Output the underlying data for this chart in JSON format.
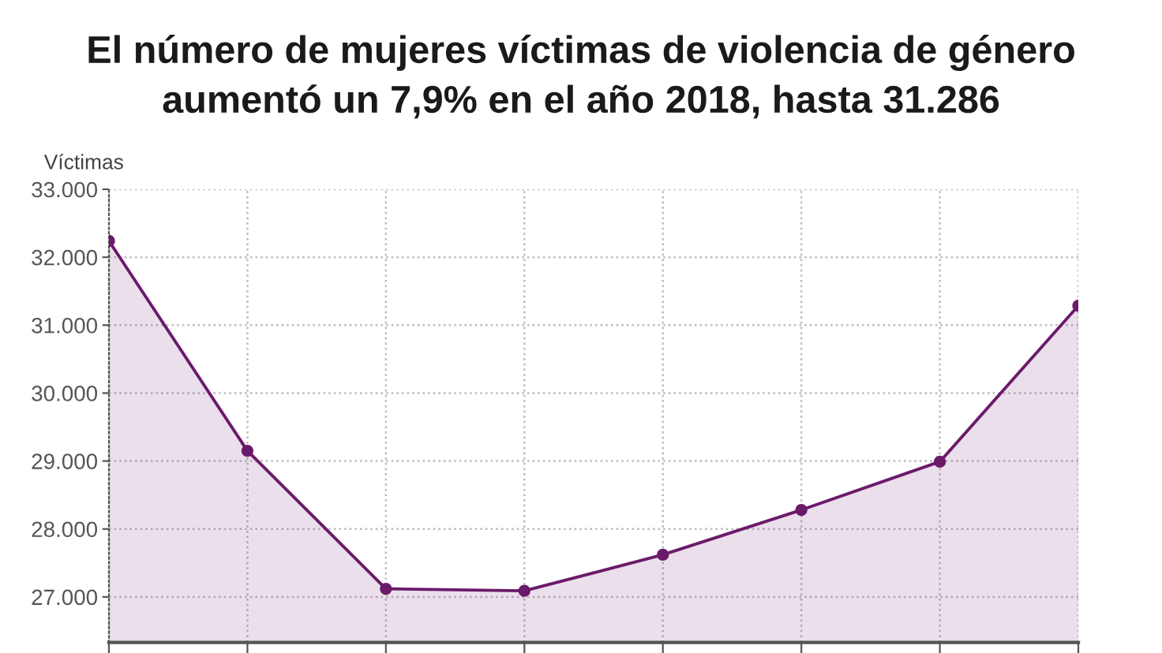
{
  "chart_data": {
    "type": "area",
    "title": "El número de mujeres víctimas de violencia de género\naumentó un 7,9% en el año 2018, hasta 31.286",
    "ylabel": "Víctimas",
    "categories": [
      null,
      null,
      null,
      null,
      null,
      null,
      null,
      null
    ],
    "series": [
      {
        "color": "#6b1a6b",
        "values": [
          32240,
          29150,
          27120,
          27090,
          27620,
          28280,
          28990,
          31286
        ]
      }
    ],
    "ylim": [
      26330,
      33000
    ],
    "yticks": [
      {
        "value": 27000,
        "label": "27.000"
      },
      {
        "value": 28000,
        "label": "28.000"
      },
      {
        "value": 29000,
        "label": "29.000"
      },
      {
        "value": 30000,
        "label": "30.000"
      },
      {
        "value": 31000,
        "label": "31.000"
      },
      {
        "value": 32000,
        "label": "32.000"
      },
      {
        "value": 33000,
        "label": "33.000"
      }
    ],
    "grid": true,
    "marker": "circle",
    "tick_labels": "y"
  }
}
